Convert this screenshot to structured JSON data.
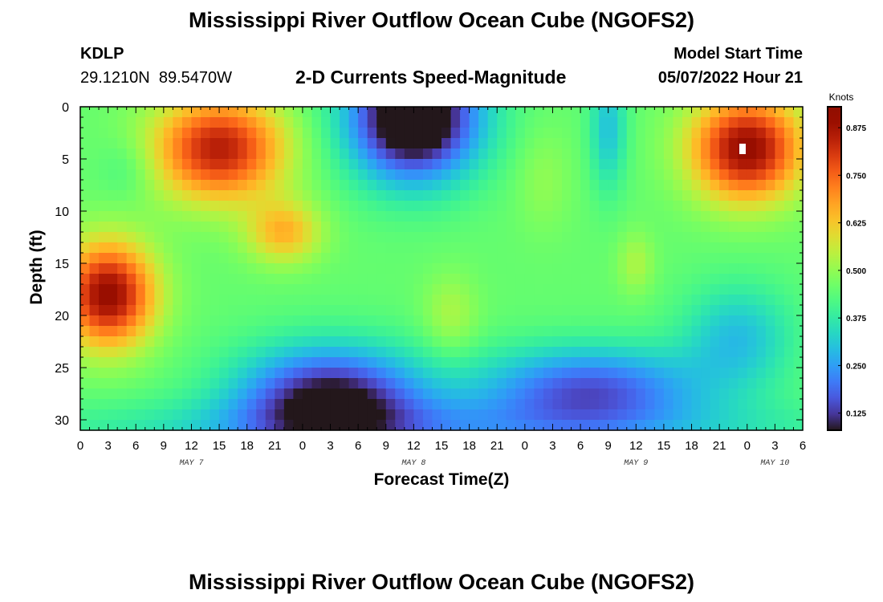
{
  "page": {
    "title": "Mississippi River Outflow Ocean Cube (NGOFS2)",
    "title_bottom": "Mississippi River Outflow Ocean Cube (NGOFS2)"
  },
  "header": {
    "station_id": "KDLP",
    "coordinates": "29.1210N  89.5470W",
    "subtitle": "2-D Currents Speed-Magnitude",
    "model_label": "Model Start Time",
    "model_time": "05/07/2022 Hour 21"
  },
  "chart_data": {
    "type": "heatmap",
    "title": "2-D Currents Speed-Magnitude",
    "xlabel": "Forecast Time(Z)",
    "ylabel": "Depth (ft)",
    "ylim": [
      31,
      0
    ],
    "y_ticks": [
      0,
      5,
      10,
      15,
      20,
      25,
      30
    ],
    "y_tick_labels": [
      "0",
      "5",
      "10",
      "15",
      "20",
      "25",
      "30"
    ],
    "x_ticks": [
      0,
      3,
      6,
      9,
      12,
      15,
      18,
      21,
      24,
      27,
      30,
      33,
      36,
      39,
      42,
      45,
      48,
      51,
      54,
      57,
      60,
      63,
      66,
      69,
      72,
      75,
      78
    ],
    "x_tick_labels": [
      "0",
      "3",
      "6",
      "9",
      "12",
      "15",
      "18",
      "21",
      "0",
      "3",
      "6",
      "9",
      "12",
      "15",
      "18",
      "21",
      "0",
      "3",
      "6",
      "9",
      "12",
      "15",
      "18",
      "21",
      "0",
      "3",
      "6"
    ],
    "xlim": [
      0,
      78
    ],
    "date_labels": [
      {
        "text": "MAY 7",
        "hour": 12
      },
      {
        "text": "MAY 8",
        "hour": 36
      },
      {
        "text": "MAY 9",
        "hour": 60
      },
      {
        "text": "MAY 10",
        "hour": 75
      }
    ],
    "colorbar": {
      "label": "Knots",
      "min": 0.08,
      "max": 0.93,
      "ticks": [
        0.125,
        0.25,
        0.375,
        0.5,
        0.625,
        0.75,
        0.875
      ],
      "tick_labels": [
        "0.125",
        "0.250",
        "0.375",
        "0.500",
        "0.625",
        "0.750",
        "0.875"
      ]
    },
    "anomaly_marker": {
      "hour": 71.5,
      "depth": 4,
      "color": "#ffffff"
    },
    "grid_nx": 78,
    "grid_ny": 31,
    "base_speed": 0.45,
    "features": [
      {
        "hour": 3,
        "depth": 18,
        "amp": 0.45,
        "sx": 5,
        "sy": 5
      },
      {
        "hour": 15,
        "depth": 4,
        "amp": 0.4,
        "sx": 7,
        "sy": 5
      },
      {
        "hour": 22,
        "depth": 12,
        "amp": 0.2,
        "sx": 4,
        "sy": 3
      },
      {
        "hour": 5,
        "depth": 6,
        "amp": -0.05,
        "sx": 3,
        "sy": 3
      },
      {
        "hour": 36,
        "depth": 1,
        "amp": -0.5,
        "sx": 7,
        "sy": 6
      },
      {
        "hour": 40,
        "depth": 20,
        "amp": 0.08,
        "sx": 3,
        "sy": 4
      },
      {
        "hour": 50,
        "depth": 7,
        "amp": 0.05,
        "sx": 3,
        "sy": 5
      },
      {
        "hour": 57,
        "depth": 2,
        "amp": -0.15,
        "sx": 2,
        "sy": 6
      },
      {
        "hour": 60,
        "depth": 15,
        "amp": 0.08,
        "sx": 2,
        "sy": 3
      },
      {
        "hour": 72,
        "depth": 4,
        "amp": 0.45,
        "sx": 6,
        "sy": 5
      },
      {
        "hour": 27,
        "depth": 28,
        "amp": -0.38,
        "sx": 10,
        "sy": 5
      },
      {
        "hour": 55,
        "depth": 27,
        "amp": -0.28,
        "sx": 12,
        "sy": 4
      },
      {
        "hour": 71,
        "depth": 22,
        "amp": -0.15,
        "sx": 6,
        "sy": 5
      },
      {
        "hour": 39,
        "depth": 31,
        "amp": -0.15,
        "sx": 40,
        "sy": 3
      }
    ]
  }
}
